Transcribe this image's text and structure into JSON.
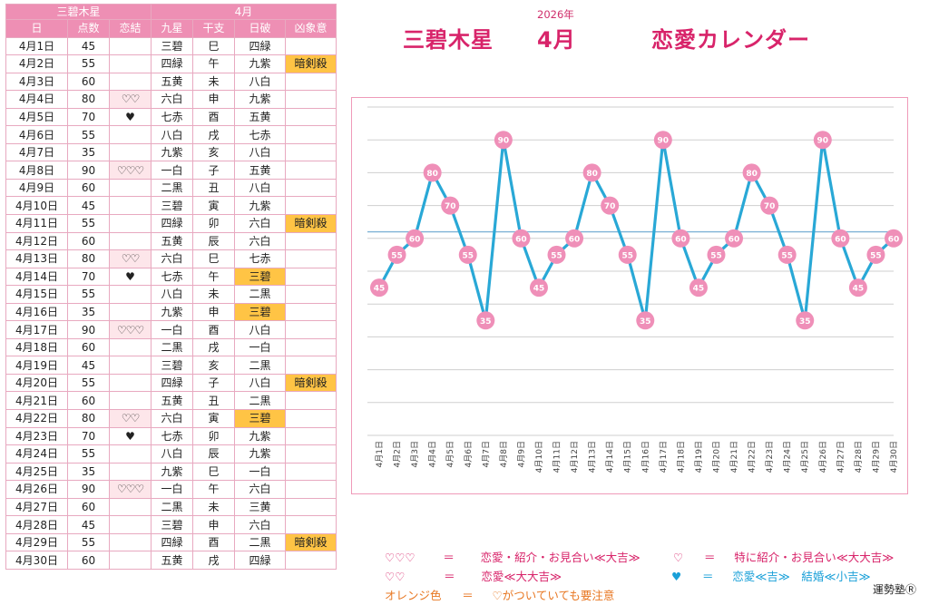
{
  "table": {
    "header_top": [
      "三碧木星",
      "4月"
    ],
    "columns": [
      "日",
      "点数",
      "恋結",
      "九星",
      "干支",
      "日破",
      "凶象意"
    ],
    "rows": [
      {
        "date": "4月1日",
        "score": "45",
        "love": "",
        "star": "三碧",
        "eto": "巳",
        "nichiha": "四緑",
        "kyou": "",
        "hl": ""
      },
      {
        "date": "4月2日",
        "score": "55",
        "love": "",
        "star": "四緑",
        "eto": "午",
        "nichiha": "九紫",
        "kyou": "暗剣殺",
        "hl": ""
      },
      {
        "date": "4月3日",
        "score": "60",
        "love": "",
        "star": "五黄",
        "eto": "未",
        "nichiha": "八白",
        "kyou": "",
        "hl": ""
      },
      {
        "date": "4月4日",
        "score": "80",
        "love": "♡♡",
        "star": "六白",
        "eto": "申",
        "nichiha": "九紫",
        "kyou": "",
        "hl": ""
      },
      {
        "date": "4月5日",
        "score": "70",
        "love": "♥",
        "star": "七赤",
        "eto": "酉",
        "nichiha": "五黄",
        "kyou": "",
        "hl": ""
      },
      {
        "date": "4月6日",
        "score": "55",
        "love": "",
        "star": "八白",
        "eto": "戌",
        "nichiha": "七赤",
        "kyou": "",
        "hl": ""
      },
      {
        "date": "4月7日",
        "score": "35",
        "love": "",
        "star": "九紫",
        "eto": "亥",
        "nichiha": "八白",
        "kyou": "",
        "hl": ""
      },
      {
        "date": "4月8日",
        "score": "90",
        "love": "♡♡♡",
        "star": "一白",
        "eto": "子",
        "nichiha": "五黄",
        "kyou": "",
        "hl": ""
      },
      {
        "date": "4月9日",
        "score": "60",
        "love": "",
        "star": "二黒",
        "eto": "丑",
        "nichiha": "八白",
        "kyou": "",
        "hl": ""
      },
      {
        "date": "4月10日",
        "score": "45",
        "love": "",
        "star": "三碧",
        "eto": "寅",
        "nichiha": "九紫",
        "kyou": "",
        "hl": ""
      },
      {
        "date": "4月11日",
        "score": "55",
        "love": "",
        "star": "四緑",
        "eto": "卯",
        "nichiha": "六白",
        "kyou": "暗剣殺",
        "hl": ""
      },
      {
        "date": "4月12日",
        "score": "60",
        "love": "",
        "star": "五黄",
        "eto": "辰",
        "nichiha": "六白",
        "kyou": "",
        "hl": ""
      },
      {
        "date": "4月13日",
        "score": "80",
        "love": "♡♡",
        "star": "六白",
        "eto": "巳",
        "nichiha": "七赤",
        "kyou": "",
        "hl": ""
      },
      {
        "date": "4月14日",
        "score": "70",
        "love": "♥",
        "star": "七赤",
        "eto": "午",
        "nichiha": "三碧",
        "kyou": "",
        "hl": "orange"
      },
      {
        "date": "4月15日",
        "score": "55",
        "love": "",
        "star": "八白",
        "eto": "未",
        "nichiha": "二黒",
        "kyou": "",
        "hl": ""
      },
      {
        "date": "4月16日",
        "score": "35",
        "love": "",
        "star": "九紫",
        "eto": "申",
        "nichiha": "三碧",
        "kyou": "",
        "hl": "orange"
      },
      {
        "date": "4月17日",
        "score": "90",
        "love": "♡♡♡",
        "star": "一白",
        "eto": "酉",
        "nichiha": "八白",
        "kyou": "",
        "hl": ""
      },
      {
        "date": "4月18日",
        "score": "60",
        "love": "",
        "star": "二黒",
        "eto": "戌",
        "nichiha": "一白",
        "kyou": "",
        "hl": ""
      },
      {
        "date": "4月19日",
        "score": "45",
        "love": "",
        "star": "三碧",
        "eto": "亥",
        "nichiha": "二黒",
        "kyou": "",
        "hl": ""
      },
      {
        "date": "4月20日",
        "score": "55",
        "love": "",
        "star": "四緑",
        "eto": "子",
        "nichiha": "八白",
        "kyou": "暗剣殺",
        "hl": ""
      },
      {
        "date": "4月21日",
        "score": "60",
        "love": "",
        "star": "五黄",
        "eto": "丑",
        "nichiha": "二黒",
        "kyou": "",
        "hl": ""
      },
      {
        "date": "4月22日",
        "score": "80",
        "love": "♡♡",
        "star": "六白",
        "eto": "寅",
        "nichiha": "三碧",
        "kyou": "",
        "hl": "orange"
      },
      {
        "date": "4月23日",
        "score": "70",
        "love": "♥",
        "star": "七赤",
        "eto": "卯",
        "nichiha": "九紫",
        "kyou": "",
        "hl": ""
      },
      {
        "date": "4月24日",
        "score": "55",
        "love": "",
        "star": "八白",
        "eto": "辰",
        "nichiha": "九紫",
        "kyou": "",
        "hl": ""
      },
      {
        "date": "4月25日",
        "score": "35",
        "love": "",
        "star": "九紫",
        "eto": "巳",
        "nichiha": "一白",
        "kyou": "",
        "hl": ""
      },
      {
        "date": "4月26日",
        "score": "90",
        "love": "♡♡♡",
        "star": "一白",
        "eto": "午",
        "nichiha": "六白",
        "kyou": "",
        "hl": ""
      },
      {
        "date": "4月27日",
        "score": "60",
        "love": "",
        "star": "二黒",
        "eto": "未",
        "nichiha": "三黄",
        "kyou": "",
        "hl": ""
      },
      {
        "date": "4月28日",
        "score": "45",
        "love": "",
        "star": "三碧",
        "eto": "申",
        "nichiha": "六白",
        "kyou": "",
        "hl": ""
      },
      {
        "date": "4月29日",
        "score": "55",
        "love": "",
        "star": "四緑",
        "eto": "酉",
        "nichiha": "二黒",
        "kyou": "暗剣殺",
        "hl": ""
      },
      {
        "date": "4月30日",
        "score": "60",
        "love": "",
        "star": "五黄",
        "eto": "戌",
        "nichiha": "四緑",
        "kyou": "",
        "hl": ""
      }
    ]
  },
  "title": {
    "year": "2026年",
    "star": "三碧木星",
    "month": "4月",
    "name": "恋愛カレンダー"
  },
  "chart_data": {
    "type": "line",
    "x": [
      "4月1日",
      "4月2日",
      "4月3日",
      "4月4日",
      "4月5日",
      "4月6日",
      "4月7日",
      "4月8日",
      "4月9日",
      "4月10日",
      "4月11日",
      "4月12日",
      "4月13日",
      "4月14日",
      "4月15日",
      "4月16日",
      "4月17日",
      "4月18日",
      "4月19日",
      "4月20日",
      "4月21日",
      "4月22日",
      "4月23日",
      "4月24日",
      "4月25日",
      "4月26日",
      "4月27日",
      "4月28日",
      "4月29日",
      "4月30日"
    ],
    "values": [
      45,
      55,
      60,
      80,
      70,
      55,
      35,
      90,
      60,
      45,
      55,
      60,
      80,
      70,
      55,
      35,
      90,
      60,
      45,
      55,
      60,
      80,
      70,
      55,
      35,
      90,
      60,
      45,
      55,
      60
    ],
    "ylim": [
      0,
      100
    ],
    "reference_line": 62,
    "grid": true,
    "line_color": "#29a8d6",
    "marker_color": "#ef8fb8"
  },
  "legend": {
    "l1_sym": "♡♡♡",
    "l1_eq": "＝",
    "l1_text": "恋愛・紹介・お見合い≪大吉≫",
    "l2_sym": "♡",
    "l2_eq": "＝",
    "l2_text": "特に紹介・お見合い≪大大吉≫",
    "l3_sym": "♡♡",
    "l3_eq": "＝",
    "l3_text": "恋愛≪大大吉≫",
    "l4_sym": "♥",
    "l4_eq": "＝",
    "l4_text": "恋愛≪吉≫　結婚≪小吉≫",
    "l5_sym": "オレンジ色",
    "l5_eq": "＝",
    "l5_text": "♡がついていても要注意"
  },
  "copyright": "運勢塾Ⓡ"
}
